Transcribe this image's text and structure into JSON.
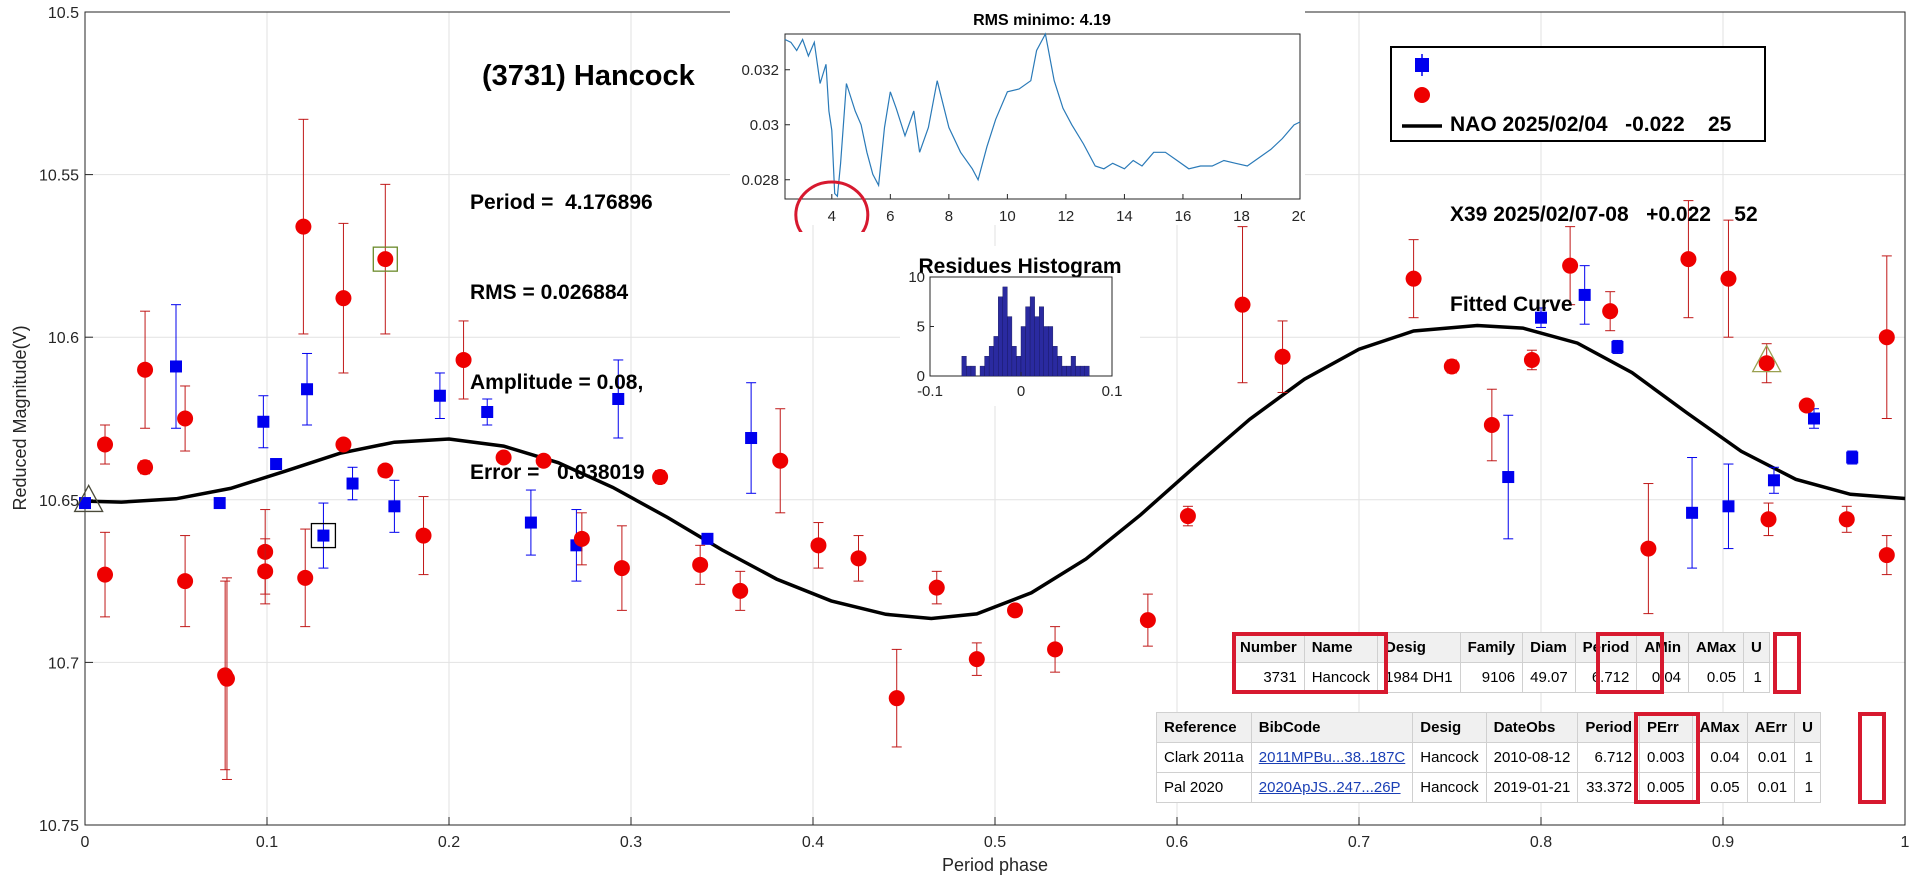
{
  "title": "(3731) Hancock",
  "info": {
    "period": "Period =  4.176896",
    "rms": "RMS = 0.026884",
    "amplitude": "Amplitude = 0.08,",
    "error": "Error =   0.038019"
  },
  "legend": [
    {
      "label": "NAO 2025/02/04   -0.022    25",
      "color": "#0000ee",
      "marker": "square"
    },
    {
      "label": "X39 2025/02/07-08   +0.022    52",
      "color": "#ee0000",
      "marker": "circle"
    },
    {
      "label": "Fitted Curve",
      "color": "#000000",
      "marker": "line"
    }
  ],
  "colors": {
    "nao": "#0000ee",
    "x39": "#ee0000",
    "fit": "#000000",
    "rms_line": "#2a7ab8",
    "hist": "#2a2aa0",
    "highlight": "#d7192f"
  },
  "chart_data": [
    {
      "type": "scatter",
      "xlabel": "Period phase",
      "ylabel": "Reduced Magnitude(V)",
      "xlim": [
        0,
        1
      ],
      "ylim": [
        10.75,
        10.5
      ],
      "y_reversed": true,
      "grid": true,
      "legend_position": "top-right",
      "xticks": [
        "0",
        "0.1",
        "0.2",
        "0.3",
        "0.4",
        "0.5",
        "0.6",
        "0.7",
        "0.8",
        "0.9",
        "1"
      ],
      "yticks": [
        "10.5",
        "10.55",
        "10.6",
        "10.65",
        "10.7",
        "10.75"
      ],
      "series": [
        {
          "name": "NAO 2025/02/04   -0.022    25",
          "points": [
            {
              "x": 0.0,
              "y": 10.651,
              "err": 0.0
            },
            {
              "x": 0.05,
              "y": 10.609,
              "err": 0.019
            },
            {
              "x": 0.074,
              "y": 10.651,
              "err": 0.0
            },
            {
              "x": 0.098,
              "y": 10.626,
              "err": 0.008
            },
            {
              "x": 0.105,
              "y": 10.639,
              "err": 0.0
            },
            {
              "x": 0.122,
              "y": 10.616,
              "err": 0.011
            },
            {
              "x": 0.131,
              "y": 10.661,
              "err": 0.01
            },
            {
              "x": 0.147,
              "y": 10.645,
              "err": 0.005
            },
            {
              "x": 0.17,
              "y": 10.652,
              "err": 0.008
            },
            {
              "x": 0.195,
              "y": 10.618,
              "err": 0.007
            },
            {
              "x": 0.221,
              "y": 10.623,
              "err": 0.004
            },
            {
              "x": 0.245,
              "y": 10.657,
              "err": 0.01
            },
            {
              "x": 0.27,
              "y": 10.664,
              "err": 0.011
            },
            {
              "x": 0.293,
              "y": 10.619,
              "err": 0.012
            },
            {
              "x": 0.342,
              "y": 10.662,
              "err": 0.0
            },
            {
              "x": 0.366,
              "y": 10.631,
              "err": 0.017
            },
            {
              "x": 0.782,
              "y": 10.643,
              "err": 0.019
            },
            {
              "x": 0.8,
              "y": 10.594,
              "err": 0.003
            },
            {
              "x": 0.824,
              "y": 10.587,
              "err": 0.009
            },
            {
              "x": 0.842,
              "y": 10.603,
              "err": 0.002
            },
            {
              "x": 0.883,
              "y": 10.654,
              "err": 0.017
            },
            {
              "x": 0.903,
              "y": 10.652,
              "err": 0.013
            },
            {
              "x": 0.928,
              "y": 10.644,
              "err": 0.004
            },
            {
              "x": 0.95,
              "y": 10.625,
              "err": 0.003
            },
            {
              "x": 0.971,
              "y": 10.637,
              "err": 0.002
            }
          ]
        },
        {
          "name": "X39 2025/02/07-08   +0.022    52",
          "points": [
            {
              "x": 0.011,
              "y": 10.633,
              "err": 0.006
            },
            {
              "x": 0.011,
              "y": 10.673,
              "err": 0.013
            },
            {
              "x": 0.033,
              "y": 10.64,
              "err": 0.002
            },
            {
              "x": 0.033,
              "y": 10.61,
              "err": 0.018
            },
            {
              "x": 0.055,
              "y": 10.625,
              "err": 0.01
            },
            {
              "x": 0.055,
              "y": 10.675,
              "err": 0.014
            },
            {
              "x": 0.077,
              "y": 10.704,
              "err": 0.029
            },
            {
              "x": 0.078,
              "y": 10.705,
              "err": 0.031
            },
            {
              "x": 0.099,
              "y": 10.666,
              "err": 0.013
            },
            {
              "x": 0.099,
              "y": 10.672,
              "err": 0.01
            },
            {
              "x": 0.12,
              "y": 10.566,
              "err": 0.033
            },
            {
              "x": 0.121,
              "y": 10.674,
              "err": 0.015
            },
            {
              "x": 0.142,
              "y": 10.588,
              "err": 0.023
            },
            {
              "x": 0.142,
              "y": 10.633,
              "err": 0.0
            },
            {
              "x": 0.165,
              "y": 10.576,
              "err": 0.023
            },
            {
              "x": 0.165,
              "y": 10.641,
              "err": 0.0
            },
            {
              "x": 0.186,
              "y": 10.661,
              "err": 0.012
            },
            {
              "x": 0.208,
              "y": 10.607,
              "err": 0.012
            },
            {
              "x": 0.23,
              "y": 10.637,
              "err": 0.0
            },
            {
              "x": 0.252,
              "y": 10.638,
              "err": 0.0
            },
            {
              "x": 0.273,
              "y": 10.662,
              "err": 0.008
            },
            {
              "x": 0.295,
              "y": 10.671,
              "err": 0.013
            },
            {
              "x": 0.316,
              "y": 10.643,
              "err": 0.002
            },
            {
              "x": 0.338,
              "y": 10.67,
              "err": 0.006
            },
            {
              "x": 0.36,
              "y": 10.678,
              "err": 0.006
            },
            {
              "x": 0.382,
              "y": 10.638,
              "err": 0.016
            },
            {
              "x": 0.403,
              "y": 10.664,
              "err": 0.007
            },
            {
              "x": 0.425,
              "y": 10.668,
              "err": 0.007
            },
            {
              "x": 0.446,
              "y": 10.711,
              "err": 0.015
            },
            {
              "x": 0.468,
              "y": 10.677,
              "err": 0.005
            },
            {
              "x": 0.49,
              "y": 10.699,
              "err": 0.005
            },
            {
              "x": 0.511,
              "y": 10.684,
              "err": 0.0
            },
            {
              "x": 0.533,
              "y": 10.696,
              "err": 0.007
            },
            {
              "x": 0.584,
              "y": 10.687,
              "err": 0.008
            },
            {
              "x": 0.606,
              "y": 10.655,
              "err": 0.003
            },
            {
              "x": 0.636,
              "y": 10.59,
              "err": 0.024
            },
            {
              "x": 0.658,
              "y": 10.606,
              "err": 0.011
            },
            {
              "x": 0.73,
              "y": 10.582,
              "err": 0.012
            },
            {
              "x": 0.751,
              "y": 10.609,
              "err": 0.002
            },
            {
              "x": 0.773,
              "y": 10.627,
              "err": 0.011
            },
            {
              "x": 0.795,
              "y": 10.607,
              "err": 0.003
            },
            {
              "x": 0.816,
              "y": 10.578,
              "err": 0.012
            },
            {
              "x": 0.838,
              "y": 10.592,
              "err": 0.006
            },
            {
              "x": 0.859,
              "y": 10.665,
              "err": 0.02
            },
            {
              "x": 0.881,
              "y": 10.576,
              "err": 0.018
            },
            {
              "x": 0.903,
              "y": 10.582,
              "err": 0.018
            },
            {
              "x": 0.924,
              "y": 10.608,
              "err": 0.006
            },
            {
              "x": 0.925,
              "y": 10.656,
              "err": 0.005
            },
            {
              "x": 0.946,
              "y": 10.621,
              "err": 0.0
            },
            {
              "x": 0.968,
              "y": 10.656,
              "err": 0.004
            },
            {
              "x": 0.99,
              "y": 10.667,
              "err": 0.006
            },
            {
              "x": 0.99,
              "y": 10.6,
              "err": 0.025
            }
          ]
        },
        {
          "name": "Fitted Curve",
          "type": "line",
          "points": [
            {
              "x": 0.0,
              "y": 10.6504
            },
            {
              "x": 0.02,
              "y": 10.6507
            },
            {
              "x": 0.05,
              "y": 10.6497
            },
            {
              "x": 0.08,
              "y": 10.6465
            },
            {
              "x": 0.11,
              "y": 10.6412
            },
            {
              "x": 0.14,
              "y": 10.6357
            },
            {
              "x": 0.17,
              "y": 10.6323
            },
            {
              "x": 0.2,
              "y": 10.6313
            },
            {
              "x": 0.23,
              "y": 10.6335
            },
            {
              "x": 0.26,
              "y": 10.6386
            },
            {
              "x": 0.29,
              "y": 10.6462
            },
            {
              "x": 0.32,
              "y": 10.6554
            },
            {
              "x": 0.35,
              "y": 10.6654
            },
            {
              "x": 0.38,
              "y": 10.6744
            },
            {
              "x": 0.41,
              "y": 10.6811
            },
            {
              "x": 0.44,
              "y": 10.6852
            },
            {
              "x": 0.465,
              "y": 10.6865
            },
            {
              "x": 0.49,
              "y": 10.6851
            },
            {
              "x": 0.52,
              "y": 10.6786
            },
            {
              "x": 0.55,
              "y": 10.6682
            },
            {
              "x": 0.58,
              "y": 10.6546
            },
            {
              "x": 0.61,
              "y": 10.6397
            },
            {
              "x": 0.64,
              "y": 10.6252
            },
            {
              "x": 0.67,
              "y": 10.6129
            },
            {
              "x": 0.7,
              "y": 10.6037
            },
            {
              "x": 0.73,
              "y": 10.5981
            },
            {
              "x": 0.765,
              "y": 10.5964
            },
            {
              "x": 0.79,
              "y": 10.5972
            },
            {
              "x": 0.82,
              "y": 10.6018
            },
            {
              "x": 0.85,
              "y": 10.6109
            },
            {
              "x": 0.88,
              "y": 10.6232
            },
            {
              "x": 0.91,
              "y": 10.6351
            },
            {
              "x": 0.94,
              "y": 10.6437
            },
            {
              "x": 0.97,
              "y": 10.6483
            },
            {
              "x": 1.0,
              "y": 10.6496
            }
          ]
        }
      ],
      "markers": [
        {
          "kind": "triangle",
          "x": 0.002,
          "y": 10.6505,
          "color": "#4a4a3a"
        },
        {
          "kind": "box",
          "x": 0.131,
          "y": 10.661,
          "color": "#000000"
        },
        {
          "kind": "box",
          "x": 0.165,
          "y": 10.576,
          "color": "#6a8a2a"
        },
        {
          "kind": "triangle",
          "x": 0.924,
          "y": 10.6075,
          "color": "#9aa050"
        }
      ]
    },
    {
      "type": "line",
      "title": "RMS minimo: 4.19",
      "xlim": [
        2.4,
        20
      ],
      "ylim": [
        0.0273,
        0.0333
      ],
      "xticks": [
        "4",
        "6",
        "8",
        "10",
        "12",
        "14",
        "16",
        "18",
        "20"
      ],
      "yticks": [
        "0.028",
        "0.03",
        "0.032"
      ],
      "x": [
        2.4,
        2.6,
        2.8,
        3.0,
        3.2,
        3.4,
        3.6,
        3.8,
        3.9,
        4.0,
        4.1,
        4.19,
        4.3,
        4.5,
        4.8,
        5.0,
        5.2,
        5.4,
        5.6,
        5.8,
        6.0,
        6.2,
        6.5,
        6.8,
        7.0,
        7.3,
        7.6,
        8.0,
        8.4,
        8.8,
        9.0,
        9.3,
        9.6,
        10.0,
        10.4,
        10.8,
        11.0,
        11.3,
        11.6,
        11.9,
        12.2,
        12.6,
        13.0,
        13.3,
        13.6,
        14.0,
        14.3,
        14.6,
        15.0,
        15.4,
        15.8,
        16.2,
        16.6,
        17.0,
        17.4,
        17.8,
        18.2,
        18.6,
        19.0,
        19.4,
        19.8,
        20.0
      ],
      "values": [
        0.0331,
        0.033,
        0.0327,
        0.0331,
        0.0325,
        0.033,
        0.0315,
        0.0322,
        0.0305,
        0.0298,
        0.0275,
        0.0274,
        0.0286,
        0.0315,
        0.0305,
        0.03,
        0.029,
        0.0282,
        0.0278,
        0.0299,
        0.0312,
        0.0306,
        0.0296,
        0.0305,
        0.029,
        0.0299,
        0.0316,
        0.0299,
        0.029,
        0.0284,
        0.028,
        0.0292,
        0.0302,
        0.0312,
        0.0313,
        0.0316,
        0.0327,
        0.0333,
        0.0316,
        0.0306,
        0.03,
        0.0293,
        0.0285,
        0.0284,
        0.0286,
        0.0284,
        0.0287,
        0.0285,
        0.029,
        0.029,
        0.0287,
        0.0284,
        0.0285,
        0.0285,
        0.0287,
        0.0286,
        0.0285,
        0.0288,
        0.0291,
        0.0295,
        0.03,
        0.0301
      ]
    },
    {
      "type": "bar",
      "title": "Residues Histogram",
      "xlim": [
        -0.1,
        0.1
      ],
      "ylim": [
        0,
        10
      ],
      "xticks": [
        "-0.1",
        "0",
        "0.1"
      ],
      "yticks": [
        "0",
        "5",
        "10"
      ],
      "bin_start": -0.065,
      "bin_width": 0.005,
      "values": [
        2,
        1,
        1,
        0,
        1,
        2,
        3,
        4,
        8,
        9,
        6,
        3,
        2,
        5,
        7,
        8,
        6,
        7,
        5,
        5,
        3,
        2,
        1,
        1,
        2,
        1,
        1,
        1
      ]
    }
  ],
  "table1": {
    "headers": [
      "Number",
      "Name",
      "Desig",
      "Family",
      "Diam",
      "Period",
      "AMin",
      "AMax",
      "U"
    ],
    "row": [
      "3731",
      "Hancock",
      "1984 DH1",
      "9106",
      "49.07",
      "6.712",
      "0.04",
      "0.05",
      "1"
    ]
  },
  "table2": {
    "headers": [
      "Reference",
      "BibCode",
      "Desig",
      "DateObs",
      "Period",
      "PErr",
      "AMax",
      "AErr",
      "U"
    ],
    "rows": [
      [
        "Clark 2011a",
        "2011MPBu...38..187C",
        "Hancock",
        "2010-08-12",
        "6.712",
        "0.003",
        "0.04",
        "0.01",
        "1"
      ],
      [
        "Pal 2020",
        "2020ApJS..247...26P",
        "Hancock",
        "2019-01-21",
        "33.372",
        "0.005",
        "0.05",
        "0.01",
        "1"
      ]
    ]
  }
}
